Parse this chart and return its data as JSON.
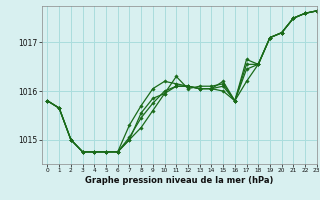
{
  "title": "Graphe pression niveau de la mer (hPa)",
  "bg_color": "#d8f0f0",
  "grid_color": "#aadddd",
  "line_color": "#1a6b1a",
  "xlim": [
    -0.5,
    23
  ],
  "ylim": [
    1014.5,
    1017.75
  ],
  "yticks": [
    1015,
    1016,
    1017
  ],
  "xticks": [
    0,
    1,
    2,
    3,
    4,
    5,
    6,
    7,
    8,
    9,
    10,
    11,
    12,
    13,
    14,
    15,
    16,
    17,
    18,
    19,
    20,
    21,
    22,
    23
  ],
  "series": [
    [
      1015.8,
      1015.65,
      1015.0,
      1014.75,
      1014.75,
      1014.75,
      1014.75,
      1015.05,
      1015.45,
      1015.75,
      1016.0,
      1016.1,
      1016.1,
      1016.05,
      1016.05,
      1016.0,
      1015.8,
      1016.45,
      1016.55,
      1017.1,
      1017.2,
      1017.5,
      1017.6,
      1017.65
    ],
    [
      1015.8,
      1015.65,
      1015.0,
      1014.75,
      1014.75,
      1014.75,
      1014.75,
      1015.3,
      1015.7,
      1016.05,
      1016.2,
      1016.15,
      1016.1,
      1016.05,
      1016.05,
      1016.1,
      1015.8,
      1016.2,
      1016.55,
      1017.1,
      1017.2,
      1017.5,
      1017.6,
      1017.65
    ],
    [
      1015.8,
      1015.65,
      1015.0,
      1014.75,
      1014.75,
      1014.75,
      1014.75,
      1015.0,
      1015.55,
      1015.85,
      1015.95,
      1016.3,
      1016.05,
      1016.1,
      1016.1,
      1016.15,
      1015.8,
      1016.65,
      1016.55,
      1017.1,
      1017.2,
      1017.5,
      1017.6,
      1017.65
    ],
    [
      1015.8,
      1015.65,
      1015.0,
      1014.75,
      1014.75,
      1014.75,
      1014.75,
      1015.0,
      1015.25,
      1015.6,
      1015.95,
      1016.1,
      1016.1,
      1016.05,
      1016.05,
      1016.2,
      1015.8,
      1016.55,
      1016.55,
      1017.1,
      1017.2,
      1017.5,
      1017.6,
      1017.65
    ]
  ]
}
